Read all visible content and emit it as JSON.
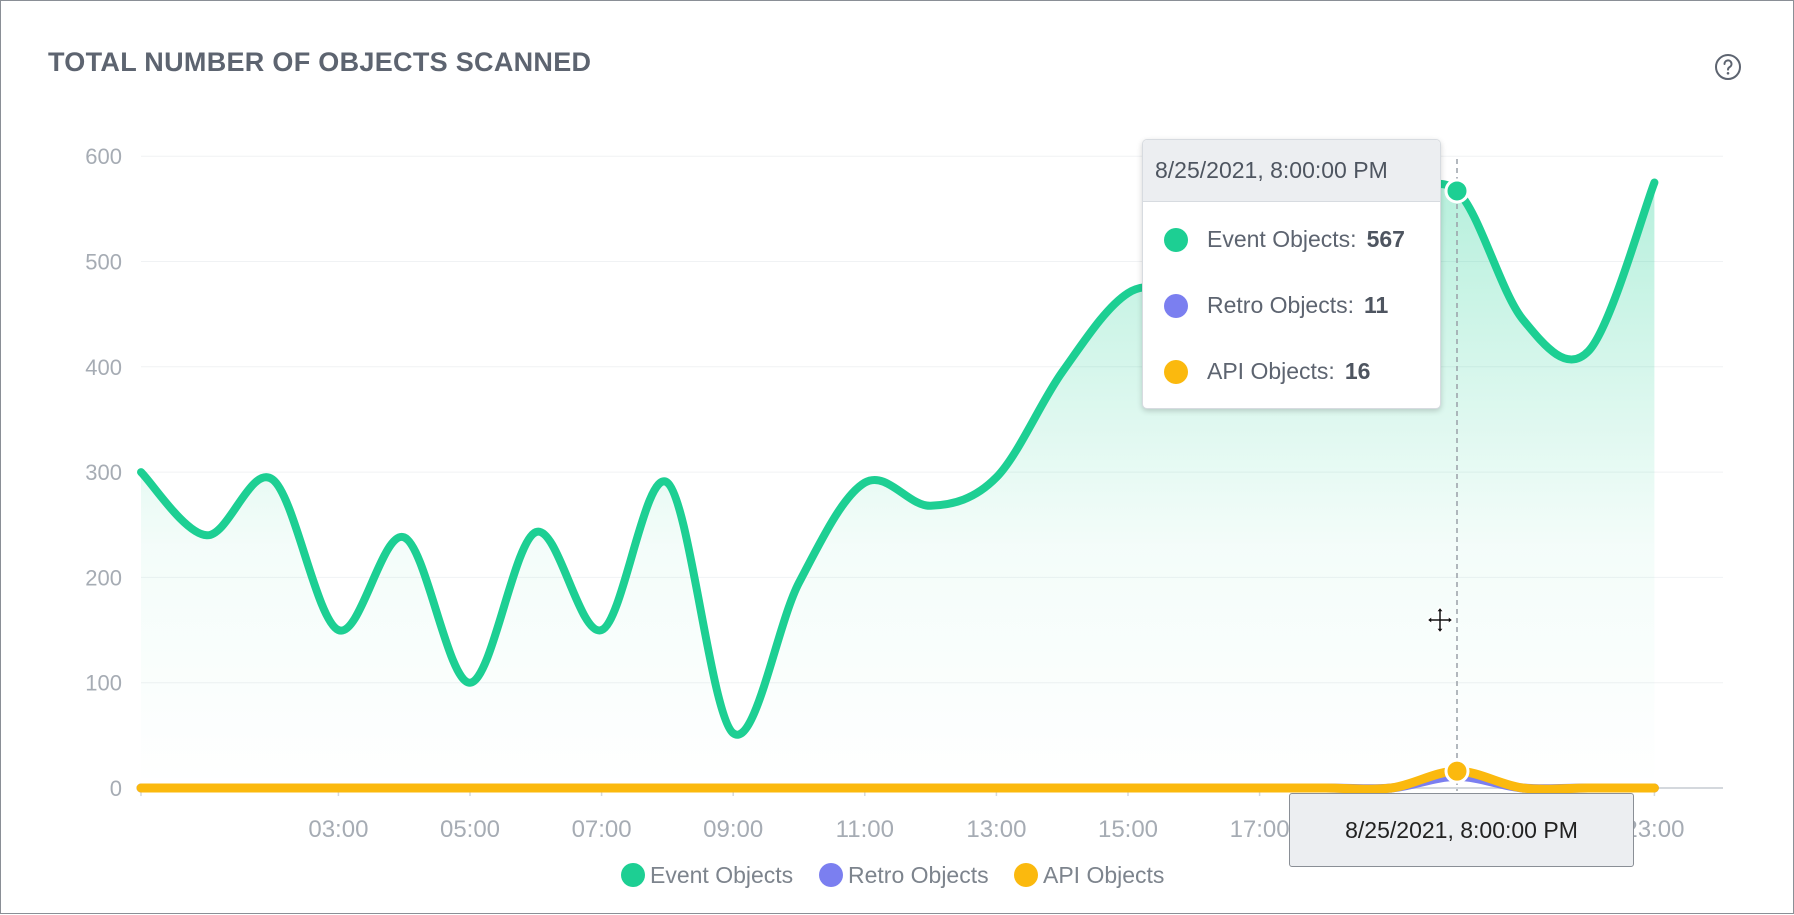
{
  "panel": {
    "title": "TOTAL NUMBER OF OBJECTS SCANNED",
    "help_icon": "question-circle-icon",
    "cursor_icon": "move-cursor-icon"
  },
  "colors": {
    "event": "#1dcf93",
    "retro": "#7b7ff0",
    "api": "#fbb90e"
  },
  "tooltip": {
    "header": "8/25/2021, 8:00:00 PM",
    "rows": [
      {
        "label": "Event Objects:",
        "value": "567"
      },
      {
        "label": "Retro Objects:",
        "value": "11"
      },
      {
        "label": "API Objects:",
        "value": "16"
      }
    ]
  },
  "crosshair_label": "8/25/2021, 8:00:00 PM",
  "chart_data": {
    "type": "area",
    "x": [
      "00:00",
      "01:00",
      "02:00",
      "03:00",
      "04:00",
      "05:00",
      "06:00",
      "07:00",
      "08:00",
      "09:00",
      "10:00",
      "11:00",
      "12:00",
      "13:00",
      "14:00",
      "15:00",
      "16:00",
      "17:00",
      "18:00",
      "19:00",
      "20:00",
      "21:00",
      "22:00",
      "23:00"
    ],
    "x_tick_labels": [
      "03:00",
      "05:00",
      "07:00",
      "09:00",
      "11:00",
      "13:00",
      "15:00",
      "17:00",
      "19:00",
      "21:00",
      "23:00"
    ],
    "y_ticks": [
      0,
      100,
      200,
      300,
      400,
      500,
      600
    ],
    "ylim": [
      0,
      600
    ],
    "series": [
      {
        "name": "Event Objects",
        "values": [
          300,
          240,
          293,
          150,
          238,
          100,
          243,
          150,
          290,
          52,
          195,
          290,
          268,
          295,
          395,
          470,
          475,
          505,
          530,
          555,
          567,
          445,
          415,
          575
        ]
      },
      {
        "name": "Retro Objects",
        "values": [
          0,
          0,
          0,
          0,
          0,
          0,
          0,
          0,
          0,
          0,
          0,
          0,
          0,
          0,
          0,
          0,
          0,
          0,
          0,
          0,
          11,
          0,
          0,
          0
        ]
      },
      {
        "name": "API Objects",
        "values": [
          0,
          0,
          0,
          0,
          0,
          0,
          0,
          0,
          0,
          0,
          0,
          0,
          0,
          0,
          0,
          0,
          0,
          0,
          0,
          0,
          16,
          0,
          0,
          0
        ]
      }
    ],
    "highlight_index": 20,
    "legend": [
      "Event Objects",
      "Retro Objects",
      "API Objects"
    ],
    "grid": true
  }
}
